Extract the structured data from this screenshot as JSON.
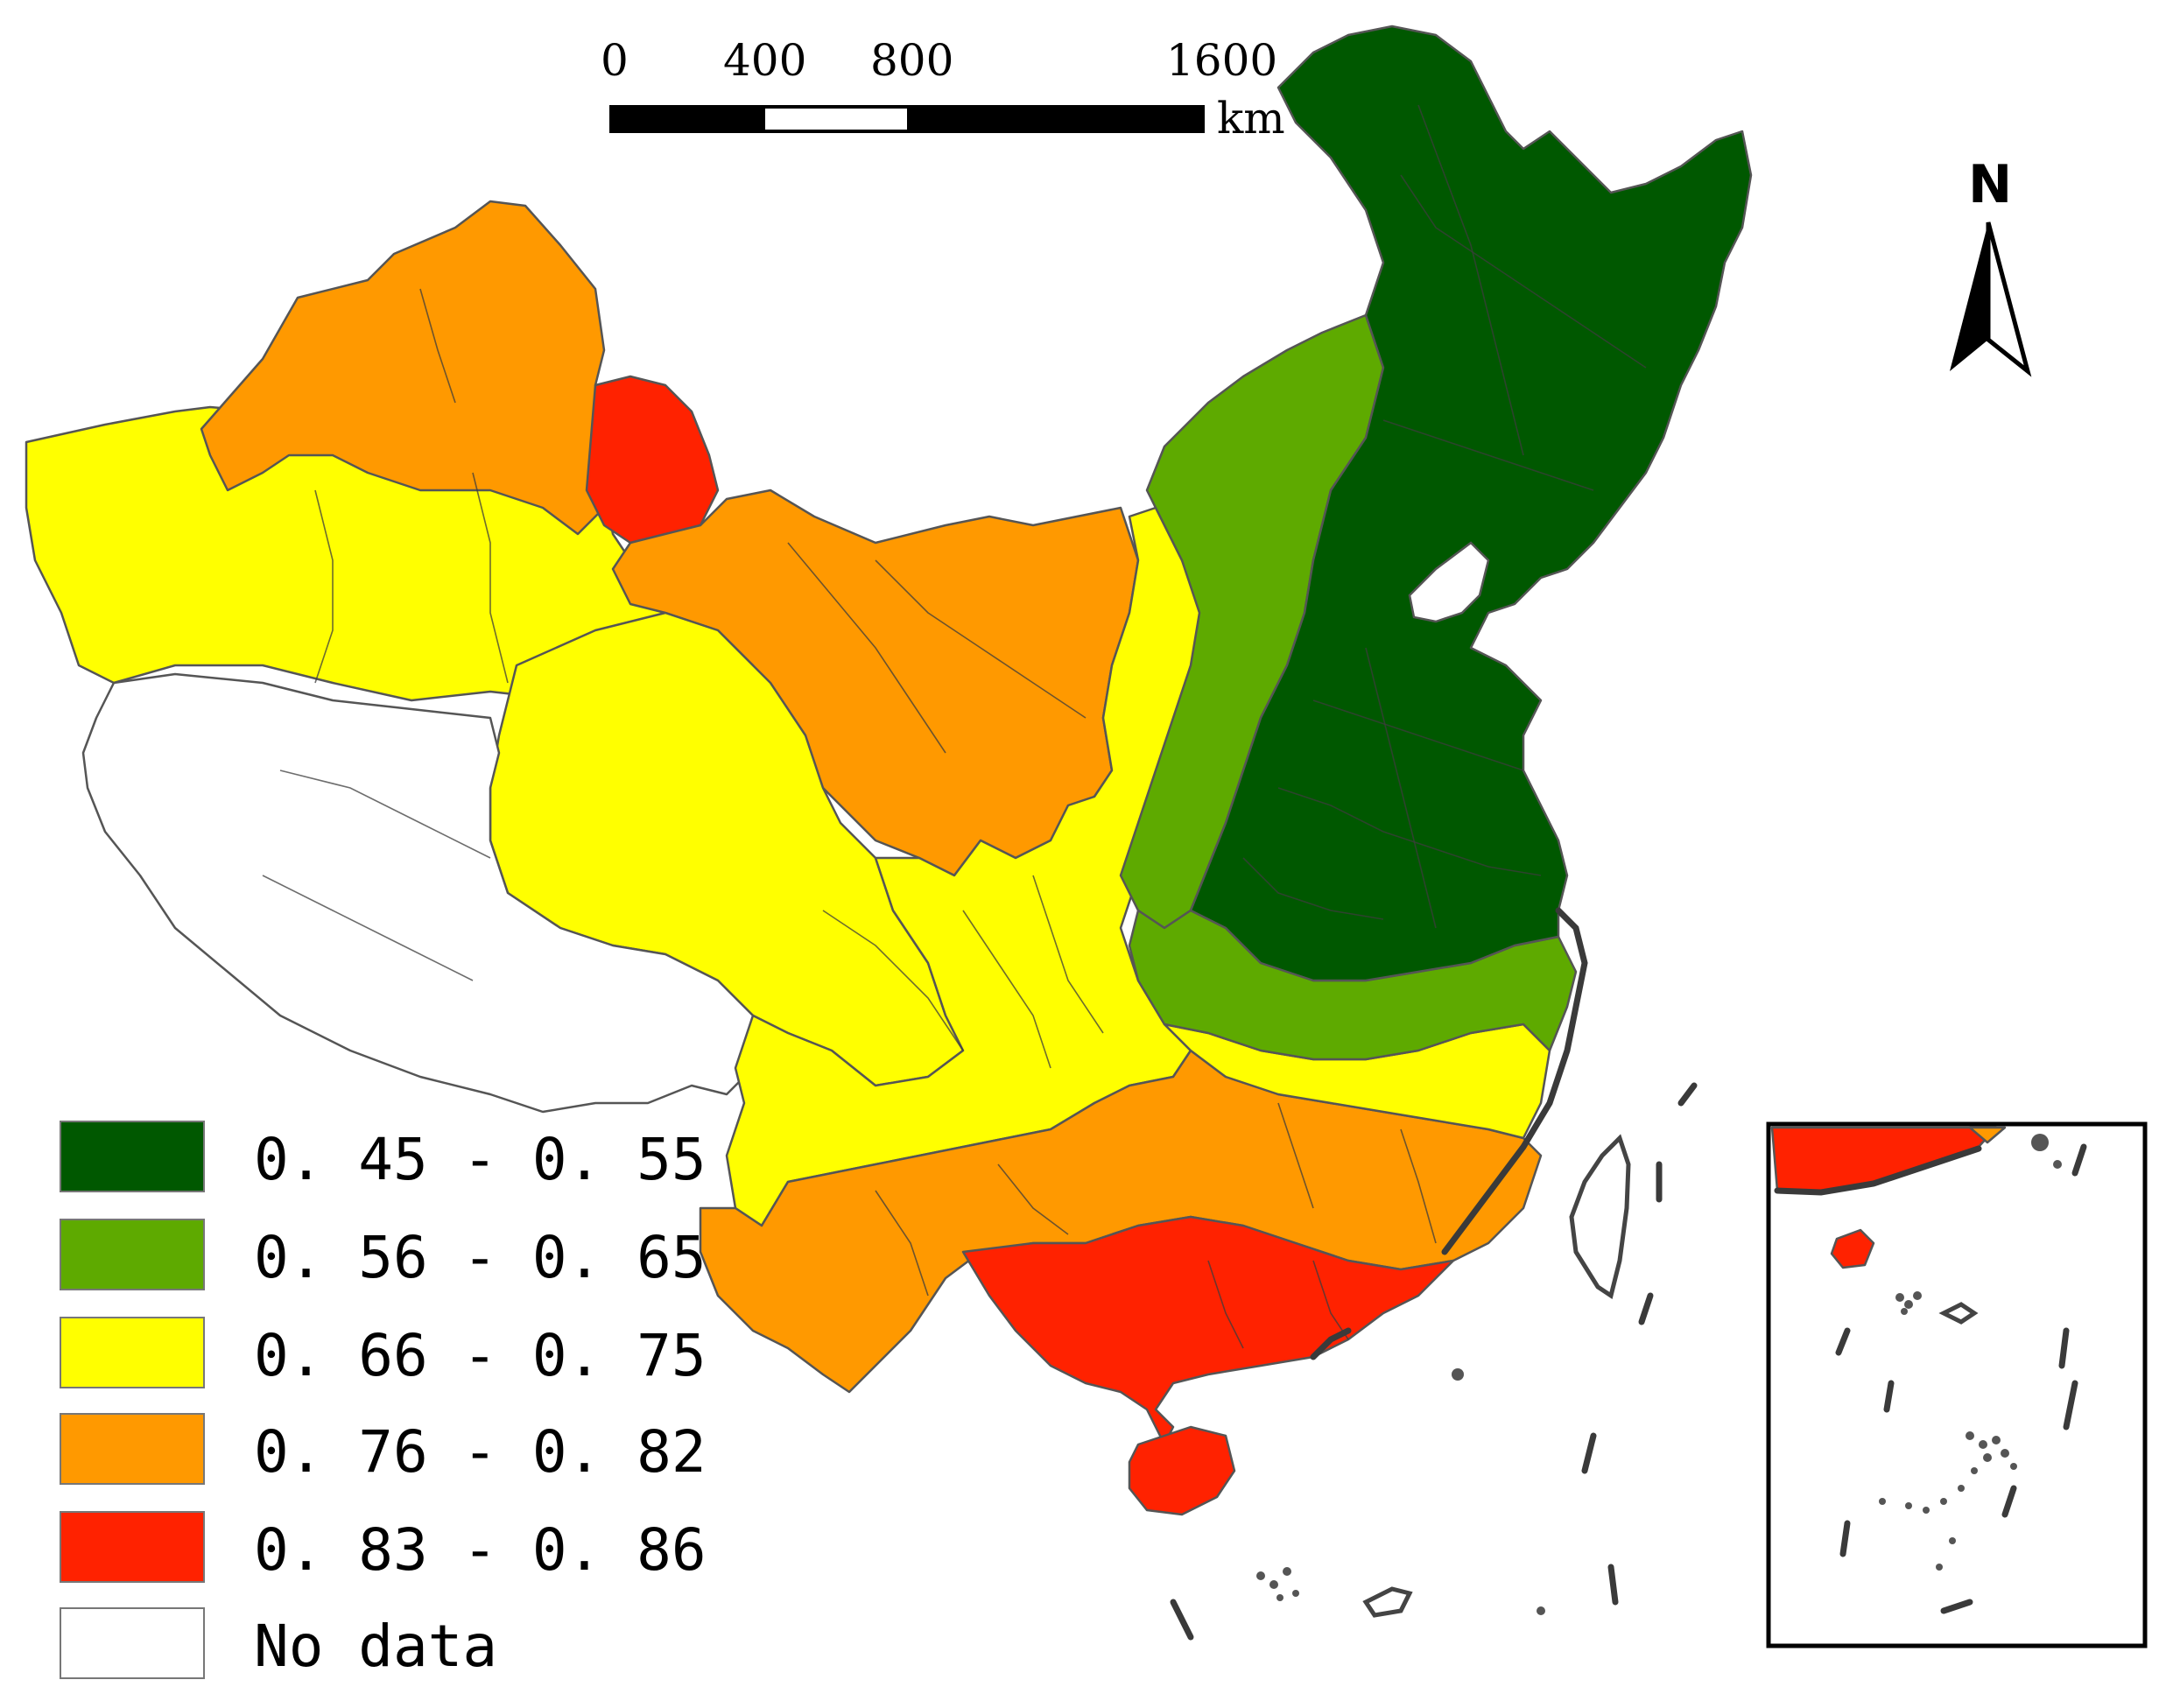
{
  "scale_bar": {
    "ticks": [
      "0",
      "400",
      "800",
      "1600"
    ],
    "unit": "km"
  },
  "north_arrow": {
    "label": "N"
  },
  "legend": {
    "items": [
      {
        "label": "0. 45 - 0. 55",
        "color": "#005800"
      },
      {
        "label": "0. 56 - 0. 65",
        "color": "#5eaa00"
      },
      {
        "label": "0. 66 - 0. 75",
        "color": "#ffff00"
      },
      {
        "label": "0. 76 - 0. 82",
        "color": "#ff9900"
      },
      {
        "label": "0. 83 - 0. 86",
        "color": "#ff2200"
      },
      {
        "label": "No data",
        "color": "#ffffff"
      }
    ]
  },
  "colors": {
    "dark_green": "#005800",
    "green": "#5eaa00",
    "yellow": "#ffff00",
    "orange": "#ff9900",
    "red": "#ff2200",
    "no_data": "#ffffff",
    "boundary": "#555555"
  }
}
